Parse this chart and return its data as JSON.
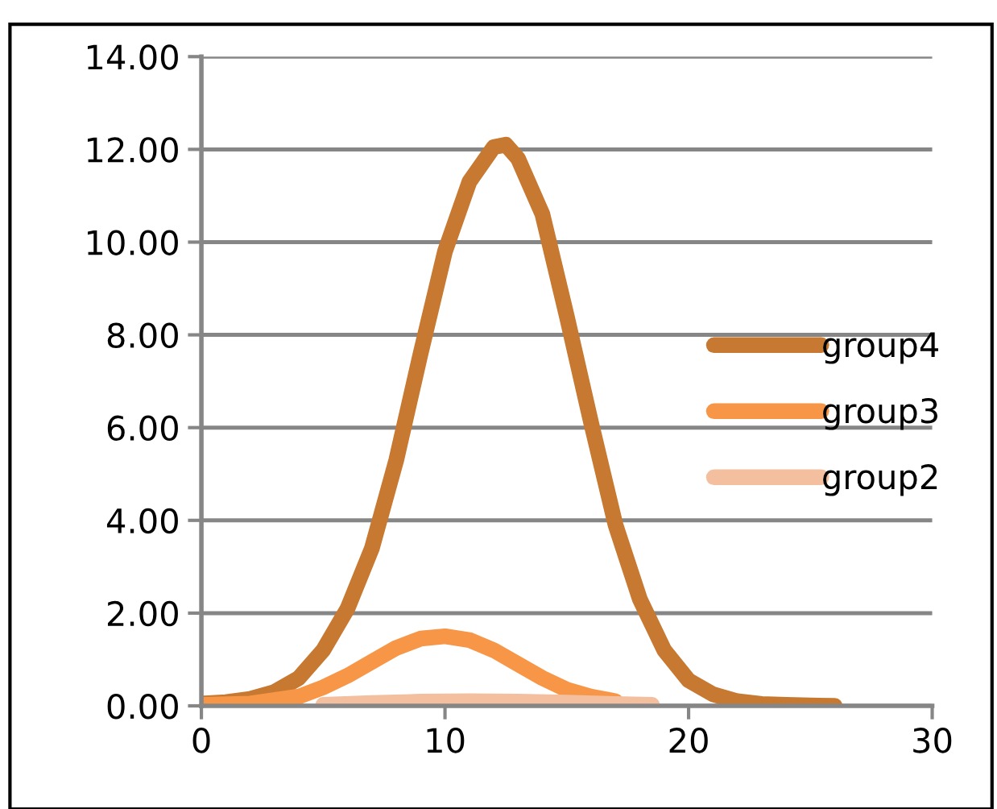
{
  "chart_data": {
    "type": "line",
    "xlim": [
      0,
      30
    ],
    "xticks": [
      0,
      10,
      20,
      30
    ],
    "ylim": [
      0,
      14
    ],
    "yticks": [
      {
        "value": 0,
        "label": "0.00"
      },
      {
        "value": 2,
        "label": "2.00"
      },
      {
        "value": 4,
        "label": "4.00"
      },
      {
        "value": 6,
        "label": "6.00"
      },
      {
        "value": 8,
        "label": "8.00"
      },
      {
        "value": 10,
        "label": "10.00"
      },
      {
        "value": 12,
        "label": "12.00"
      },
      {
        "value": 14,
        "label": "14.00"
      }
    ],
    "grid": "y",
    "legend": "right",
    "marker": "none",
    "line_style": "solid",
    "series": [
      {
        "name": "group4",
        "color": "#c77831",
        "x": [
          0,
          1,
          2,
          3,
          4,
          5,
          6,
          7,
          8,
          9,
          10,
          11,
          12,
          12.5,
          13,
          14,
          15,
          16,
          17,
          18,
          19,
          20,
          21,
          22,
          23,
          24,
          25,
          26
        ],
        "values": [
          0.05,
          0.08,
          0.15,
          0.3,
          0.6,
          1.2,
          2.1,
          3.4,
          5.3,
          7.6,
          9.8,
          11.3,
          12.05,
          12.1,
          11.8,
          10.6,
          8.4,
          6.1,
          3.9,
          2.3,
          1.2,
          0.55,
          0.25,
          0.1,
          0.04,
          0.02,
          0.01,
          0.0
        ]
      },
      {
        "name": "group3",
        "color": "#f79646",
        "x": [
          0,
          2,
          4,
          5,
          6,
          7,
          8,
          9,
          10,
          11,
          12,
          13,
          14,
          15,
          16,
          17
        ],
        "values": [
          0.02,
          0.05,
          0.2,
          0.4,
          0.65,
          0.95,
          1.25,
          1.45,
          1.5,
          1.42,
          1.2,
          0.9,
          0.6,
          0.35,
          0.2,
          0.1
        ]
      },
      {
        "name": "group2",
        "color": "#f4bf9f",
        "x": [
          5,
          7,
          9,
          11,
          13,
          15,
          17,
          18.5
        ],
        "values": [
          0.02,
          0.06,
          0.09,
          0.1,
          0.09,
          0.07,
          0.04,
          0.02
        ]
      }
    ]
  }
}
